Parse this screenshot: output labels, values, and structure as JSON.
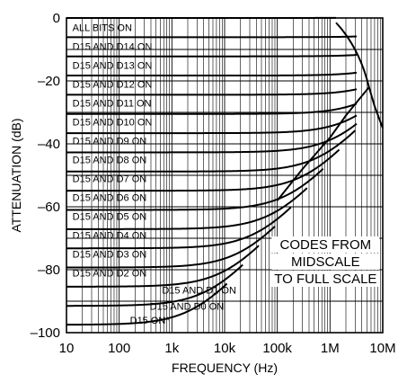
{
  "chart_data": {
    "type": "line",
    "xlabel": "FREQUENCY (Hz)",
    "ylabel": "ATTENUATION (dB)",
    "x_scale": "log",
    "xlim": [
      10,
      10000000
    ],
    "ylim": [
      -100,
      0
    ],
    "grid": true,
    "x_ticks": [
      {
        "value": 10,
        "label": "10"
      },
      {
        "value": 100,
        "label": "100"
      },
      {
        "value": 1000,
        "label": "1k"
      },
      {
        "value": 10000,
        "label": "10k"
      },
      {
        "value": 100000,
        "label": "100k"
      },
      {
        "value": 1000000,
        "label": "1M"
      },
      {
        "value": 10000000,
        "label": "10M"
      }
    ],
    "y_ticks": [
      {
        "value": 0,
        "label": "0"
      },
      {
        "value": -20,
        "label": "–20"
      },
      {
        "value": -40,
        "label": "–40"
      },
      {
        "value": -60,
        "label": "–60"
      },
      {
        "value": -80,
        "label": "–80"
      },
      {
        "value": -100,
        "label": "–100"
      }
    ],
    "annotation": {
      "lines": [
        "CODES FROM",
        "MIDSCALE",
        "TO FULL SCALE"
      ],
      "x": 1000000,
      "y": -82
    },
    "feedthrough": {
      "x": [
        100000,
        300000,
        1000000,
        2000000,
        3500000,
        5500000,
        7000000,
        10000000
      ],
      "y": [
        -58,
        -48,
        -38,
        -31,
        -26,
        -22,
        -28,
        -35
      ]
    },
    "series": [
      {
        "name": "ALL BITS ON",
        "floor": 0,
        "label_y": -3
      },
      {
        "name": "D15 AND D14 ON",
        "floor": -6.1,
        "label_y": -9
      },
      {
        "name": "D15 AND D13 ON",
        "floor": -12.2,
        "label_y": -15
      },
      {
        "name": "D15 AND D12 ON",
        "floor": -18.3,
        "label_y": -21
      },
      {
        "name": "D15 AND D11 ON",
        "floor": -24.4,
        "label_y": -27
      },
      {
        "name": "D15 AND D10 ON",
        "floor": -30.5,
        "label_y": -33
      },
      {
        "name": "D15 AND D9 ON",
        "floor": -36.6,
        "label_y": -39
      },
      {
        "name": "D15 AND D8 ON",
        "floor": -42.7,
        "label_y": -45
      },
      {
        "name": "D15 AND D7 ON",
        "floor": -48.8,
        "label_y": -51
      },
      {
        "name": "D15 AND D6 ON",
        "floor": -54.9,
        "label_y": -57
      },
      {
        "name": "D15 AND D5 ON",
        "floor": -61,
        "label_y": -63
      },
      {
        "name": "D15 AND D4  ON",
        "floor": -67.1,
        "label_y": -69
      },
      {
        "name": "D15 AND D3  ON",
        "floor": -73.2,
        "label_y": -75
      },
      {
        "name": "D15 AND D2  ON",
        "floor": -79.3,
        "label_y": -81
      },
      {
        "name": "D15 AND D1  ON",
        "floor": -85.4,
        "label_y": -86.4
      },
      {
        "name": "D15 AND D0  ON",
        "floor": -91.5,
        "label_y": -91.5
      },
      {
        "name": "D15 ON*",
        "floor": -97.5,
        "label_y": -96
      }
    ]
  }
}
